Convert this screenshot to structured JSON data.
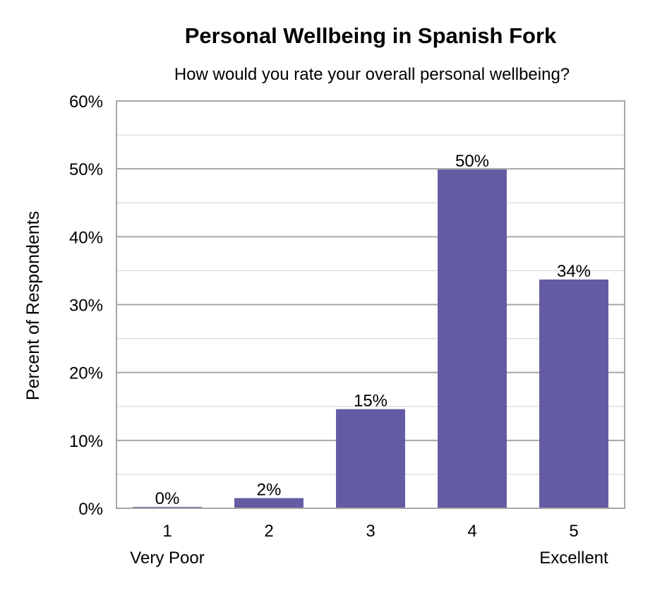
{
  "chart_data": {
    "type": "bar",
    "title": "Personal Wellbeing in Spanish Fork",
    "subtitle": "How would you rate your overall personal wellbeing?",
    "ylabel": "Percent of Respondents",
    "xlabel": "",
    "categories": [
      "1",
      "2",
      "3",
      "4",
      "5"
    ],
    "category_sublabels": [
      "Very Poor",
      "",
      "",
      "",
      "Excellent"
    ],
    "values": [
      0.2,
      1.5,
      14.6,
      49.9,
      33.7
    ],
    "data_labels": [
      "0%",
      "2%",
      "15%",
      "50%",
      "34%"
    ],
    "ylim": [
      0,
      60
    ],
    "yticks": [
      0,
      10,
      20,
      30,
      40,
      50,
      60
    ],
    "ytick_labels": [
      "0%",
      "10%",
      "20%",
      "30%",
      "40%",
      "50%",
      "60%"
    ],
    "grid": true,
    "bar_color": "#635ba3"
  }
}
